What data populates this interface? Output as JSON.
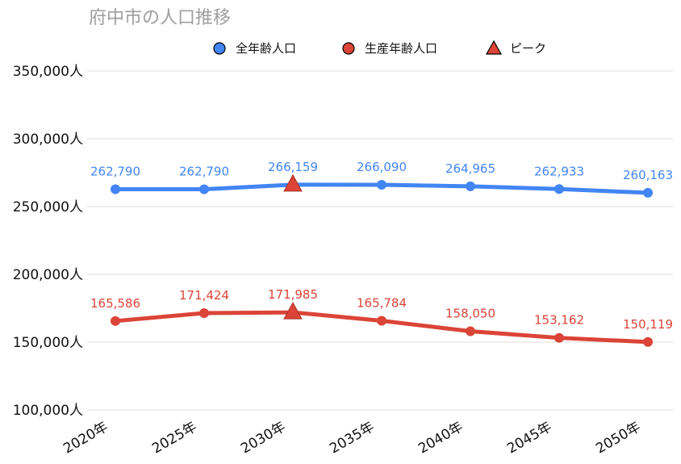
{
  "chart_data": {
    "type": "line",
    "title": "府中市の人口推移",
    "categories": [
      "2020年",
      "2025年",
      "2030年",
      "2035年",
      "2040年",
      "2045年",
      "2050年"
    ],
    "series": [
      {
        "name": "全年齢人口",
        "color": "#4285f4",
        "values": [
          262790,
          262790,
          266159,
          266090,
          264965,
          262933,
          260163
        ],
        "labels": [
          "262,790",
          "262,790",
          "266,159",
          "266,090",
          "264,965",
          "262,933",
          "260,163"
        ]
      },
      {
        "name": "生産年齢人口",
        "color": "#db4437",
        "values": [
          165586,
          171424,
          171985,
          165784,
          158050,
          153162,
          150119
        ],
        "labels": [
          "165,586",
          "171,424",
          "171,985",
          "165,784",
          "158,050",
          "153,162",
          "150,119"
        ]
      }
    ],
    "peak": {
      "name": "ピーク",
      "color": "#db4437",
      "category": "2030年"
    },
    "ylim": [
      100000,
      350000
    ],
    "yticks": [
      {
        "value": 350000,
        "label": "350,000人"
      },
      {
        "value": 300000,
        "label": "300,000人"
      },
      {
        "value": 250000,
        "label": "250,000人"
      },
      {
        "value": 200000,
        "label": "200,000人"
      },
      {
        "value": 150000,
        "label": "150,000人"
      },
      {
        "value": 100000,
        "label": "100,000人"
      }
    ],
    "grid": true,
    "legend_position": "top"
  }
}
